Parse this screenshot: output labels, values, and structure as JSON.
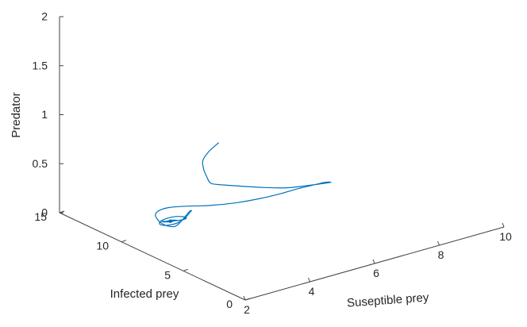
{
  "chart_data": {
    "type": "line",
    "projection": "3d",
    "title": "",
    "xlabel": "Suseptible prey",
    "ylabel": "Infected prey",
    "zlabel": "Predator",
    "xlim": [
      2,
      10
    ],
    "ylim": [
      0,
      15
    ],
    "zlim": [
      0,
      2
    ],
    "xticks": [
      "2",
      "4",
      "6",
      "8",
      "10"
    ],
    "yticks": [
      "0",
      "5",
      "10",
      "15"
    ],
    "zticks": [
      "0",
      "0.5",
      "1",
      "1.5",
      "2"
    ],
    "grid": false,
    "colors": {
      "series": "#0072bd",
      "axis": "#404040",
      "text": "#262626"
    },
    "series": [
      {
        "x": [
          1.9,
          1.75,
          1.8,
          2.05,
          2.3,
          2.55,
          3.0,
          3.6,
          4.4,
          5.2,
          6.1,
          6.8,
          7.25,
          7.4,
          7.3,
          7.05,
          6.7,
          6.2,
          5.55,
          4.95,
          4.5,
          4.1,
          3.8,
          3.55,
          3.4,
          3.3,
          3.3,
          3.4,
          3.55,
          3.78,
          4.0,
          4.2,
          4.35,
          4.4,
          4.32,
          4.12,
          3.88,
          3.63,
          3.42,
          3.28,
          3.22,
          3.25,
          3.37,
          3.55,
          3.73,
          3.88,
          3.98,
          4.0,
          3.95,
          3.82,
          3.66,
          3.51,
          3.41,
          3.37,
          3.4,
          3.48,
          3.58,
          3.66,
          3.71,
          3.71,
          3.66,
          3.59,
          3.52,
          3.47,
          3.46,
          3.48,
          3.53,
          3.58,
          3.61,
          3.62,
          3.6,
          3.56,
          3.53,
          3.51,
          3.52,
          3.54,
          3.57,
          3.58,
          3.58,
          3.56,
          3.55,
          3.54,
          3.55,
          3.56,
          3.56,
          3.55
        ],
        "y": [
          1.9,
          2.3,
          2.9,
          3.5,
          3.9,
          4.2,
          4.4,
          4.6,
          4.8,
          5.0,
          5.4,
          6.0,
          6.8,
          7.7,
          8.5,
          9.1,
          9.4,
          9.7,
          10.1,
          10.6,
          11.2,
          11.6,
          11.6,
          11.3,
          10.8,
          10.2,
          9.7,
          9.4,
          9.5,
          9.8,
          10.1,
          10.4,
          10.6,
          10.6,
          10.5,
          10.2,
          9.9,
          9.7,
          9.7,
          9.8,
          10.0,
          10.2,
          10.4,
          10.5,
          10.5,
          10.4,
          10.2,
          10.0,
          9.9,
          9.9,
          10.0,
          10.1,
          10.2,
          10.3,
          10.3,
          10.2,
          10.1,
          10.0,
          10.0,
          10.0,
          10.1,
          10.2,
          10.2,
          10.2,
          10.1,
          10.1,
          10.0,
          10.0,
          10.1,
          10.1,
          10.1,
          10.1,
          10.1,
          10.1,
          10.1,
          10.0,
          10.0,
          10.1,
          10.1,
          10.1,
          10.1,
          10.1,
          10.1,
          10.1,
          10.1,
          10.1
        ],
        "z": [
          1.5,
          1.4,
          1.27,
          1.13,
          1.0,
          0.89,
          0.82,
          0.74,
          0.64,
          0.55,
          0.47,
          0.39,
          0.31,
          0.24,
          0.17,
          0.12,
          0.09,
          0.07,
          0.06,
          0.06,
          0.06,
          0.06,
          0.06,
          0.06,
          0.06,
          0.06,
          0.06,
          0.06,
          0.06,
          0.06,
          0.06,
          0.06,
          0.06,
          0.06,
          0.06,
          0.06,
          0.06,
          0.06,
          0.06,
          0.06,
          0.06,
          0.06,
          0.06,
          0.06,
          0.06,
          0.06,
          0.06,
          0.06,
          0.06,
          0.06,
          0.06,
          0.06,
          0.06,
          0.06,
          0.06,
          0.06,
          0.06,
          0.06,
          0.06,
          0.06,
          0.06,
          0.06,
          0.06,
          0.06,
          0.06,
          0.06,
          0.06,
          0.06,
          0.06,
          0.06,
          0.06,
          0.06,
          0.06,
          0.06,
          0.06,
          0.06,
          0.06,
          0.06,
          0.06,
          0.06,
          0.06,
          0.06,
          0.06,
          0.06,
          0.06,
          0.06
        ]
      }
    ]
  }
}
